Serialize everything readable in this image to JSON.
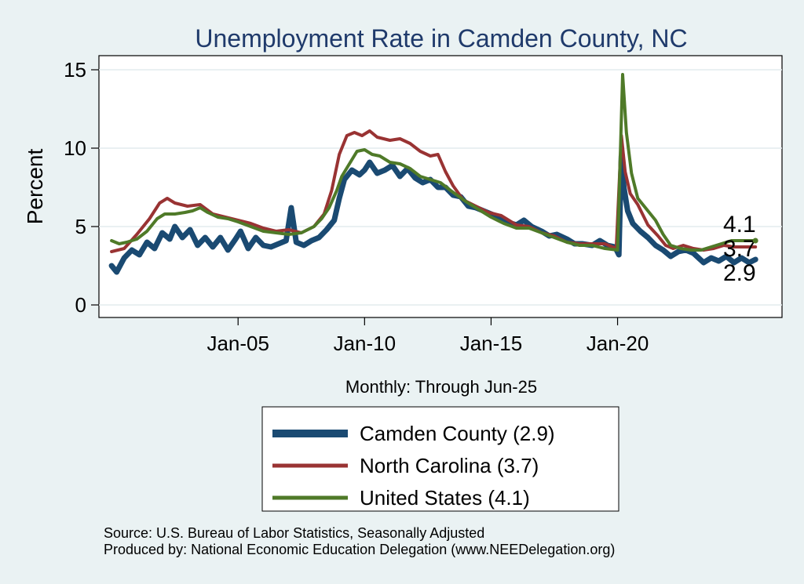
{
  "chart_data": {
    "type": "line",
    "title": "Unemployment Rate in Camden  County, NC",
    "ylabel": "Percent",
    "xlabel": "Monthly: Through Jun-25",
    "ylim": [
      -0.8,
      15.9
    ],
    "xlim": [
      1999.5,
      2026.5
    ],
    "yticks": [
      0,
      5,
      10,
      15
    ],
    "xticks": [
      {
        "value": 2005,
        "label": "Jan-05"
      },
      {
        "value": 2010,
        "label": "Jan-10"
      },
      {
        "value": 2015,
        "label": "Jan-15"
      },
      {
        "value": 2020,
        "label": "Jan-20"
      }
    ],
    "grid": true,
    "series": [
      {
        "name": "Camden  County",
        "legend_label": "Camden  County (2.9)",
        "color": "#1a4a72",
        "end_label": "2.9",
        "points": [
          [
            2000.0,
            2.5
          ],
          [
            2000.2,
            2.1
          ],
          [
            2000.5,
            3.0
          ],
          [
            2000.8,
            3.5
          ],
          [
            2001.1,
            3.2
          ],
          [
            2001.4,
            4.0
          ],
          [
            2001.7,
            3.6
          ],
          [
            2002.0,
            4.6
          ],
          [
            2002.3,
            4.2
          ],
          [
            2002.5,
            5.0
          ],
          [
            2002.8,
            4.3
          ],
          [
            2003.1,
            4.8
          ],
          [
            2003.4,
            3.8
          ],
          [
            2003.7,
            4.3
          ],
          [
            2004.0,
            3.7
          ],
          [
            2004.3,
            4.3
          ],
          [
            2004.6,
            3.5
          ],
          [
            2004.9,
            4.2
          ],
          [
            2005.1,
            4.7
          ],
          [
            2005.4,
            3.6
          ],
          [
            2005.7,
            4.3
          ],
          [
            2006.0,
            3.8
          ],
          [
            2006.3,
            3.7
          ],
          [
            2006.6,
            3.9
          ],
          [
            2006.9,
            4.1
          ],
          [
            2007.1,
            6.2
          ],
          [
            2007.3,
            4.0
          ],
          [
            2007.6,
            3.8
          ],
          [
            2007.9,
            4.1
          ],
          [
            2008.2,
            4.3
          ],
          [
            2008.5,
            4.8
          ],
          [
            2008.8,
            5.4
          ],
          [
            2009.0,
            6.8
          ],
          [
            2009.2,
            8.0
          ],
          [
            2009.5,
            8.6
          ],
          [
            2009.8,
            8.3
          ],
          [
            2010.0,
            8.6
          ],
          [
            2010.2,
            9.1
          ],
          [
            2010.5,
            8.4
          ],
          [
            2010.8,
            8.6
          ],
          [
            2011.1,
            8.9
          ],
          [
            2011.4,
            8.2
          ],
          [
            2011.7,
            8.7
          ],
          [
            2012.0,
            8.1
          ],
          [
            2012.3,
            7.8
          ],
          [
            2012.6,
            8.0
          ],
          [
            2012.9,
            7.5
          ],
          [
            2013.2,
            7.5
          ],
          [
            2013.5,
            7.0
          ],
          [
            2013.8,
            6.9
          ],
          [
            2014.1,
            6.3
          ],
          [
            2014.4,
            6.2
          ],
          [
            2014.7,
            6.0
          ],
          [
            2015.0,
            5.8
          ],
          [
            2015.3,
            5.6
          ],
          [
            2015.6,
            5.3
          ],
          [
            2016.0,
            5.1
          ],
          [
            2016.3,
            5.4
          ],
          [
            2016.6,
            5.0
          ],
          [
            2017.0,
            4.7
          ],
          [
            2017.3,
            4.4
          ],
          [
            2017.6,
            4.5
          ],
          [
            2018.0,
            4.2
          ],
          [
            2018.3,
            3.9
          ],
          [
            2018.6,
            3.9
          ],
          [
            2019.0,
            3.8
          ],
          [
            2019.3,
            4.1
          ],
          [
            2019.6,
            3.8
          ],
          [
            2019.9,
            3.7
          ],
          [
            2020.05,
            3.2
          ],
          [
            2020.15,
            9.5
          ],
          [
            2020.25,
            7.5
          ],
          [
            2020.4,
            6.0
          ],
          [
            2020.6,
            5.2
          ],
          [
            2020.9,
            4.7
          ],
          [
            2021.2,
            4.3
          ],
          [
            2021.5,
            3.8
          ],
          [
            2021.8,
            3.5
          ],
          [
            2022.1,
            3.1
          ],
          [
            2022.4,
            3.4
          ],
          [
            2022.7,
            3.5
          ],
          [
            2023.0,
            3.3
          ],
          [
            2023.2,
            3.0
          ],
          [
            2023.4,
            2.7
          ],
          [
            2023.7,
            3.0
          ],
          [
            2024.0,
            2.8
          ],
          [
            2024.3,
            3.1
          ],
          [
            2024.6,
            2.7
          ],
          [
            2024.9,
            3.0
          ],
          [
            2025.2,
            2.7
          ],
          [
            2025.45,
            2.9
          ]
        ]
      },
      {
        "name": "North Carolina",
        "legend_label": "North Carolina (3.7)",
        "color": "#993333",
        "end_label": "3.7",
        "points": [
          [
            2000.0,
            3.4
          ],
          [
            2000.5,
            3.6
          ],
          [
            2001.0,
            4.5
          ],
          [
            2001.5,
            5.5
          ],
          [
            2001.9,
            6.5
          ],
          [
            2002.2,
            6.8
          ],
          [
            2002.5,
            6.5
          ],
          [
            2003.0,
            6.3
          ],
          [
            2003.5,
            6.4
          ],
          [
            2004.0,
            5.8
          ],
          [
            2004.5,
            5.6
          ],
          [
            2005.0,
            5.4
          ],
          [
            2005.5,
            5.2
          ],
          [
            2006.0,
            4.9
          ],
          [
            2006.5,
            4.7
          ],
          [
            2007.0,
            4.8
          ],
          [
            2007.5,
            4.6
          ],
          [
            2008.0,
            5.0
          ],
          [
            2008.4,
            5.8
          ],
          [
            2008.7,
            7.3
          ],
          [
            2009.0,
            9.6
          ],
          [
            2009.3,
            10.8
          ],
          [
            2009.6,
            11.0
          ],
          [
            2009.9,
            10.8
          ],
          [
            2010.2,
            11.1
          ],
          [
            2010.5,
            10.7
          ],
          [
            2011.0,
            10.5
          ],
          [
            2011.4,
            10.6
          ],
          [
            2011.8,
            10.3
          ],
          [
            2012.2,
            9.8
          ],
          [
            2012.6,
            9.5
          ],
          [
            2012.9,
            9.6
          ],
          [
            2013.2,
            8.5
          ],
          [
            2013.5,
            7.6
          ],
          [
            2013.9,
            6.7
          ],
          [
            2014.4,
            6.3
          ],
          [
            2014.9,
            5.9
          ],
          [
            2015.4,
            5.7
          ],
          [
            2016.0,
            5.1
          ],
          [
            2016.5,
            5.0
          ],
          [
            2017.0,
            4.6
          ],
          [
            2017.5,
            4.4
          ],
          [
            2018.0,
            4.0
          ],
          [
            2018.5,
            3.9
          ],
          [
            2019.0,
            3.9
          ],
          [
            2019.5,
            3.9
          ],
          [
            2019.95,
            3.6
          ],
          [
            2020.15,
            10.8
          ],
          [
            2020.3,
            8.5
          ],
          [
            2020.5,
            7.1
          ],
          [
            2020.8,
            6.4
          ],
          [
            2021.2,
            5.1
          ],
          [
            2021.6,
            4.4
          ],
          [
            2021.9,
            3.8
          ],
          [
            2022.2,
            3.6
          ],
          [
            2022.6,
            3.8
          ],
          [
            2023.0,
            3.6
          ],
          [
            2023.4,
            3.5
          ],
          [
            2023.8,
            3.6
          ],
          [
            2024.2,
            3.8
          ],
          [
            2024.6,
            3.7
          ],
          [
            2025.0,
            3.7
          ],
          [
            2025.45,
            3.7
          ]
        ]
      },
      {
        "name": "United States",
        "legend_label": "United States (4.1)",
        "color": "#4f7a28",
        "end_label": "4.1",
        "points": [
          [
            2000.0,
            4.1
          ],
          [
            2000.3,
            3.9
          ],
          [
            2000.6,
            4.0
          ],
          [
            2001.0,
            4.2
          ],
          [
            2001.4,
            4.7
          ],
          [
            2001.8,
            5.5
          ],
          [
            2002.1,
            5.8
          ],
          [
            2002.5,
            5.8
          ],
          [
            2002.9,
            5.9
          ],
          [
            2003.2,
            6.0
          ],
          [
            2003.5,
            6.2
          ],
          [
            2003.8,
            5.9
          ],
          [
            2004.2,
            5.6
          ],
          [
            2004.6,
            5.5
          ],
          [
            2005.0,
            5.3
          ],
          [
            2005.5,
            5.0
          ],
          [
            2006.0,
            4.7
          ],
          [
            2006.5,
            4.6
          ],
          [
            2007.0,
            4.5
          ],
          [
            2007.5,
            4.6
          ],
          [
            2008.0,
            5.0
          ],
          [
            2008.3,
            5.5
          ],
          [
            2008.6,
            6.2
          ],
          [
            2008.9,
            7.3
          ],
          [
            2009.1,
            8.2
          ],
          [
            2009.4,
            9.0
          ],
          [
            2009.7,
            9.8
          ],
          [
            2010.0,
            9.9
          ],
          [
            2010.3,
            9.6
          ],
          [
            2010.6,
            9.5
          ],
          [
            2011.0,
            9.1
          ],
          [
            2011.4,
            9.0
          ],
          [
            2011.8,
            8.7
          ],
          [
            2012.2,
            8.2
          ],
          [
            2012.6,
            8.0
          ],
          [
            2013.0,
            7.8
          ],
          [
            2013.4,
            7.3
          ],
          [
            2014.0,
            6.6
          ],
          [
            2014.5,
            6.1
          ],
          [
            2015.0,
            5.6
          ],
          [
            2015.5,
            5.2
          ],
          [
            2016.0,
            4.9
          ],
          [
            2016.5,
            4.9
          ],
          [
            2017.0,
            4.6
          ],
          [
            2017.5,
            4.3
          ],
          [
            2018.0,
            4.0
          ],
          [
            2018.5,
            3.8
          ],
          [
            2019.0,
            3.8
          ],
          [
            2019.5,
            3.6
          ],
          [
            2020.0,
            3.5
          ],
          [
            2020.2,
            14.7
          ],
          [
            2020.35,
            11.0
          ],
          [
            2020.55,
            8.4
          ],
          [
            2020.8,
            6.8
          ],
          [
            2021.1,
            6.2
          ],
          [
            2021.5,
            5.4
          ],
          [
            2021.8,
            4.5
          ],
          [
            2022.1,
            3.8
          ],
          [
            2022.5,
            3.6
          ],
          [
            2022.9,
            3.5
          ],
          [
            2023.3,
            3.5
          ],
          [
            2023.7,
            3.7
          ],
          [
            2024.1,
            3.9
          ],
          [
            2024.5,
            4.1
          ],
          [
            2024.9,
            4.1
          ],
          [
            2025.2,
            4.1
          ],
          [
            2025.45,
            4.1
          ]
        ]
      }
    ],
    "end_label_order_top_to_bottom": [
      "4.1",
      "3.7",
      "2.9"
    ]
  },
  "source_lines": [
    "Source: U.S. Bureau of Labor Statistics, Seasonally Adjusted",
    "Produced by: National Economic Education Delegation (www.NEEDelegation.org)"
  ]
}
